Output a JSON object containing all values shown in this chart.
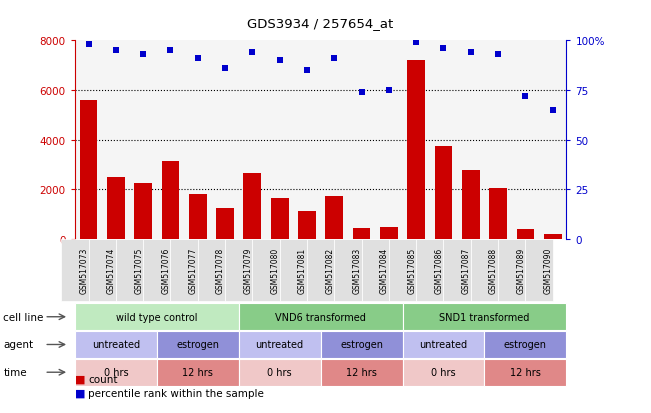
{
  "title": "GDS3934 / 257654_at",
  "samples": [
    "GSM517073",
    "GSM517074",
    "GSM517075",
    "GSM517076",
    "GSM517077",
    "GSM517078",
    "GSM517079",
    "GSM517080",
    "GSM517081",
    "GSM517082",
    "GSM517083",
    "GSM517084",
    "GSM517085",
    "GSM517086",
    "GSM517087",
    "GSM517088",
    "GSM517089",
    "GSM517090"
  ],
  "counts": [
    5600,
    2500,
    2250,
    3150,
    1800,
    1250,
    2650,
    1650,
    1150,
    1750,
    450,
    500,
    7200,
    3750,
    2800,
    2050,
    400,
    200
  ],
  "percentiles": [
    98,
    95,
    93,
    95,
    91,
    86,
    94,
    90,
    85,
    91,
    74,
    75,
    99,
    96,
    94,
    93,
    72,
    65
  ],
  "ylim_left": [
    0,
    8000
  ],
  "ylim_right": [
    0,
    100
  ],
  "yticks_left": [
    0,
    2000,
    4000,
    6000,
    8000
  ],
  "yticks_right": [
    0,
    25,
    50,
    75,
    100
  ],
  "bar_color": "#cc0000",
  "dot_color": "#0000cc",
  "plot_bg_color": "#f5f5f5",
  "cell_line_groups": [
    {
      "label": "wild type control",
      "start": 0,
      "end": 6,
      "color": "#c0eac0"
    },
    {
      "label": "VND6 transformed",
      "start": 6,
      "end": 12,
      "color": "#88cc88"
    },
    {
      "label": "SND1 transformed",
      "start": 12,
      "end": 18,
      "color": "#88cc88"
    }
  ],
  "cell_line_colors": [
    "#c0eac0",
    "#88cc88",
    "#88cc88"
  ],
  "agent_groups": [
    {
      "label": "untreated",
      "start": 0,
      "end": 3,
      "color": "#c0c0f0"
    },
    {
      "label": "estrogen",
      "start": 3,
      "end": 6,
      "color": "#9090d8"
    },
    {
      "label": "untreated",
      "start": 6,
      "end": 9,
      "color": "#c0c0f0"
    },
    {
      "label": "estrogen",
      "start": 9,
      "end": 12,
      "color": "#9090d8"
    },
    {
      "label": "untreated",
      "start": 12,
      "end": 15,
      "color": "#c0c0f0"
    },
    {
      "label": "estrogen",
      "start": 15,
      "end": 18,
      "color": "#9090d8"
    }
  ],
  "time_groups": [
    {
      "label": "0 hrs",
      "start": 0,
      "end": 3,
      "color": "#f0c8c8"
    },
    {
      "label": "12 hrs",
      "start": 3,
      "end": 6,
      "color": "#e08888"
    },
    {
      "label": "0 hrs",
      "start": 6,
      "end": 9,
      "color": "#f0c8c8"
    },
    {
      "label": "12 hrs",
      "start": 9,
      "end": 12,
      "color": "#e08888"
    },
    {
      "label": "0 hrs",
      "start": 12,
      "end": 15,
      "color": "#f0c8c8"
    },
    {
      "label": "12 hrs",
      "start": 15,
      "end": 18,
      "color": "#e08888"
    }
  ],
  "legend_count_label": "count",
  "legend_pct_label": "percentile rank within the sample",
  "axis_left_color": "#cc0000",
  "axis_right_color": "#0000cc",
  "grid_color": "#000000",
  "xticklabel_bg": "#e0e0e0"
}
